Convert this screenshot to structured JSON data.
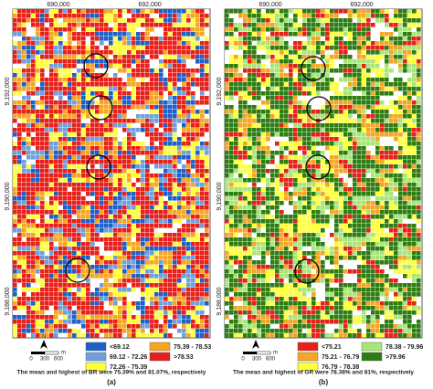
{
  "panels": [
    {
      "label": "(a)",
      "x_ticks": [
        "690,000",
        "692,000"
      ],
      "y_ticks": [
        "9,192,000",
        "9,190,000",
        "9,188,000"
      ],
      "legend": [
        {
          "label": "<69.12",
          "color": "#1f5fc8"
        },
        {
          "label": "69.12 - 72.26",
          "color": "#6fa0dc"
        },
        {
          "label": "72.26 - 75.39",
          "color": "#ffff3c"
        },
        {
          "label": "75.39 - 78.53",
          "color": "#f5a623"
        },
        {
          "label": ">78.53",
          "color": "#e8201a"
        }
      ],
      "scale_bar": {
        "labels": [
          "0",
          "300",
          "600"
        ],
        "unit": "m"
      },
      "north": "N",
      "caption": "The mean and highest of BR were 75.39% and 81.07%, respectively"
    },
    {
      "label": "(b)",
      "x_ticks": [
        "690,000",
        "692,000"
      ],
      "y_ticks": [
        "9,192,000",
        "9,190,000",
        "9,188,000"
      ],
      "legend": [
        {
          "label": "<75.21",
          "color": "#e8201a"
        },
        {
          "label": "75.21 - 76.79",
          "color": "#f5a623"
        },
        {
          "label": "76.79 - 78.38",
          "color": "#ffff3c"
        },
        {
          "label": "78.38 - 79.96",
          "color": "#a8e67a"
        },
        {
          "label": ">79.96",
          "color": "#2d7d12"
        }
      ],
      "scale_bar": {
        "labels": [
          "0",
          "300",
          "600"
        ],
        "unit": "m"
      },
      "north": "N",
      "caption": "The mean and highest of GR were 78.38% and 81%, respectively"
    }
  ]
}
